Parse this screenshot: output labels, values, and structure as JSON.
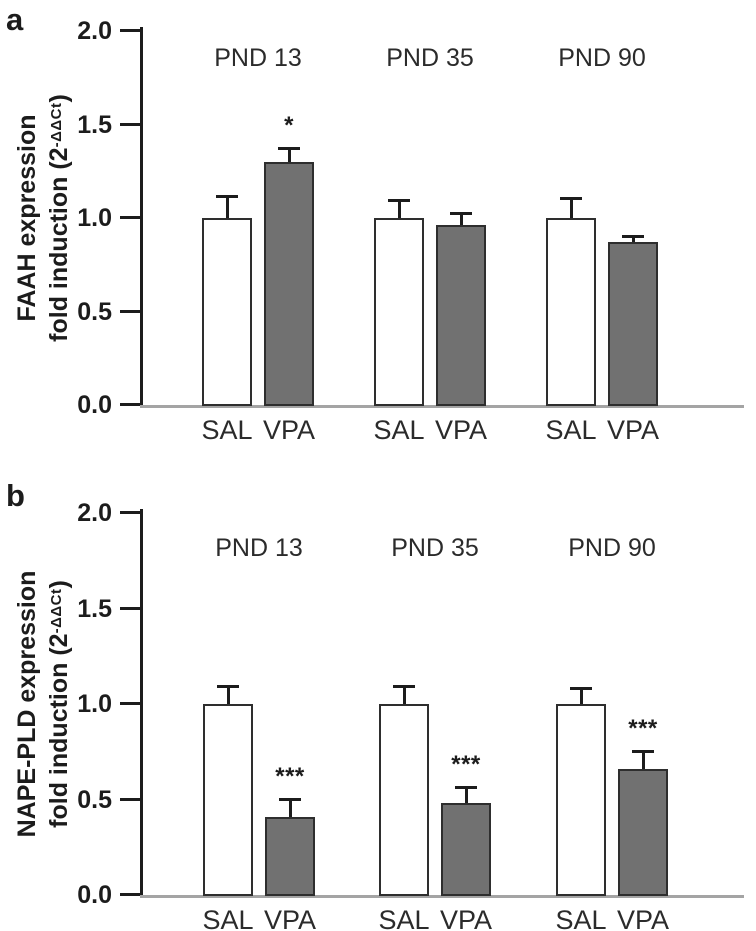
{
  "colors": {
    "background": "#ffffff",
    "sal_fill": "#ffffff",
    "vpa_fill": "#717171",
    "bar_border": "#2e2e2e",
    "axis": "#1c1c1c",
    "baseline": "#a4a4a4",
    "text": "#2b2b2b"
  },
  "chart_data": [
    {
      "type": "bar",
      "panel_letter": "a",
      "title": "",
      "categories": [
        "PND 13",
        "PND 35",
        "PND 90"
      ],
      "series": [
        {
          "name": "SAL",
          "fill": "#ffffff",
          "values": [
            1.0,
            1.0,
            1.0
          ],
          "errors": [
            0.11,
            0.09,
            0.1
          ],
          "significance": [
            "",
            "",
            ""
          ]
        },
        {
          "name": "VPA",
          "fill": "#717171",
          "values": [
            1.3,
            0.96,
            0.87
          ],
          "errors": [
            0.07,
            0.06,
            0.03
          ],
          "significance": [
            "*",
            "",
            ""
          ]
        }
      ],
      "ylabel": {
        "line1": "FAAH expression",
        "line2_pre": "fold induction (2",
        "sup": "-ΔΔCt",
        "line2_post": ")"
      },
      "yticks": [
        "0.0",
        "0.5",
        "1.0",
        "1.5",
        "2.0"
      ],
      "ylim": [
        0,
        2.0
      ],
      "xlabel": "",
      "grid": false,
      "legend": "none",
      "error_bars": "upper SEM only"
    },
    {
      "type": "bar",
      "panel_letter": "b",
      "title": "",
      "categories": [
        "PND 13",
        "PND 35",
        "PND 90"
      ],
      "series": [
        {
          "name": "SAL",
          "fill": "#ffffff",
          "values": [
            1.0,
            1.0,
            1.0
          ],
          "errors": [
            0.09,
            0.09,
            0.08
          ],
          "significance": [
            "",
            "",
            ""
          ]
        },
        {
          "name": "VPA",
          "fill": "#717171",
          "values": [
            0.41,
            0.48,
            0.66
          ],
          "errors": [
            0.09,
            0.08,
            0.09
          ],
          "significance": [
            "***",
            "***",
            "***"
          ]
        }
      ],
      "ylabel": {
        "line1": "NAPE-PLD expression",
        "line2_pre": "fold induction (2",
        "sup": "-ΔΔCt",
        "line2_post": ")"
      },
      "yticks": [
        "0.0",
        "0.5",
        "1.0",
        "1.5",
        "2.0"
      ],
      "ylim": [
        0,
        2.0
      ],
      "xlabel": "",
      "grid": false,
      "legend": "none",
      "error_bars": "upper SEM only"
    }
  ]
}
